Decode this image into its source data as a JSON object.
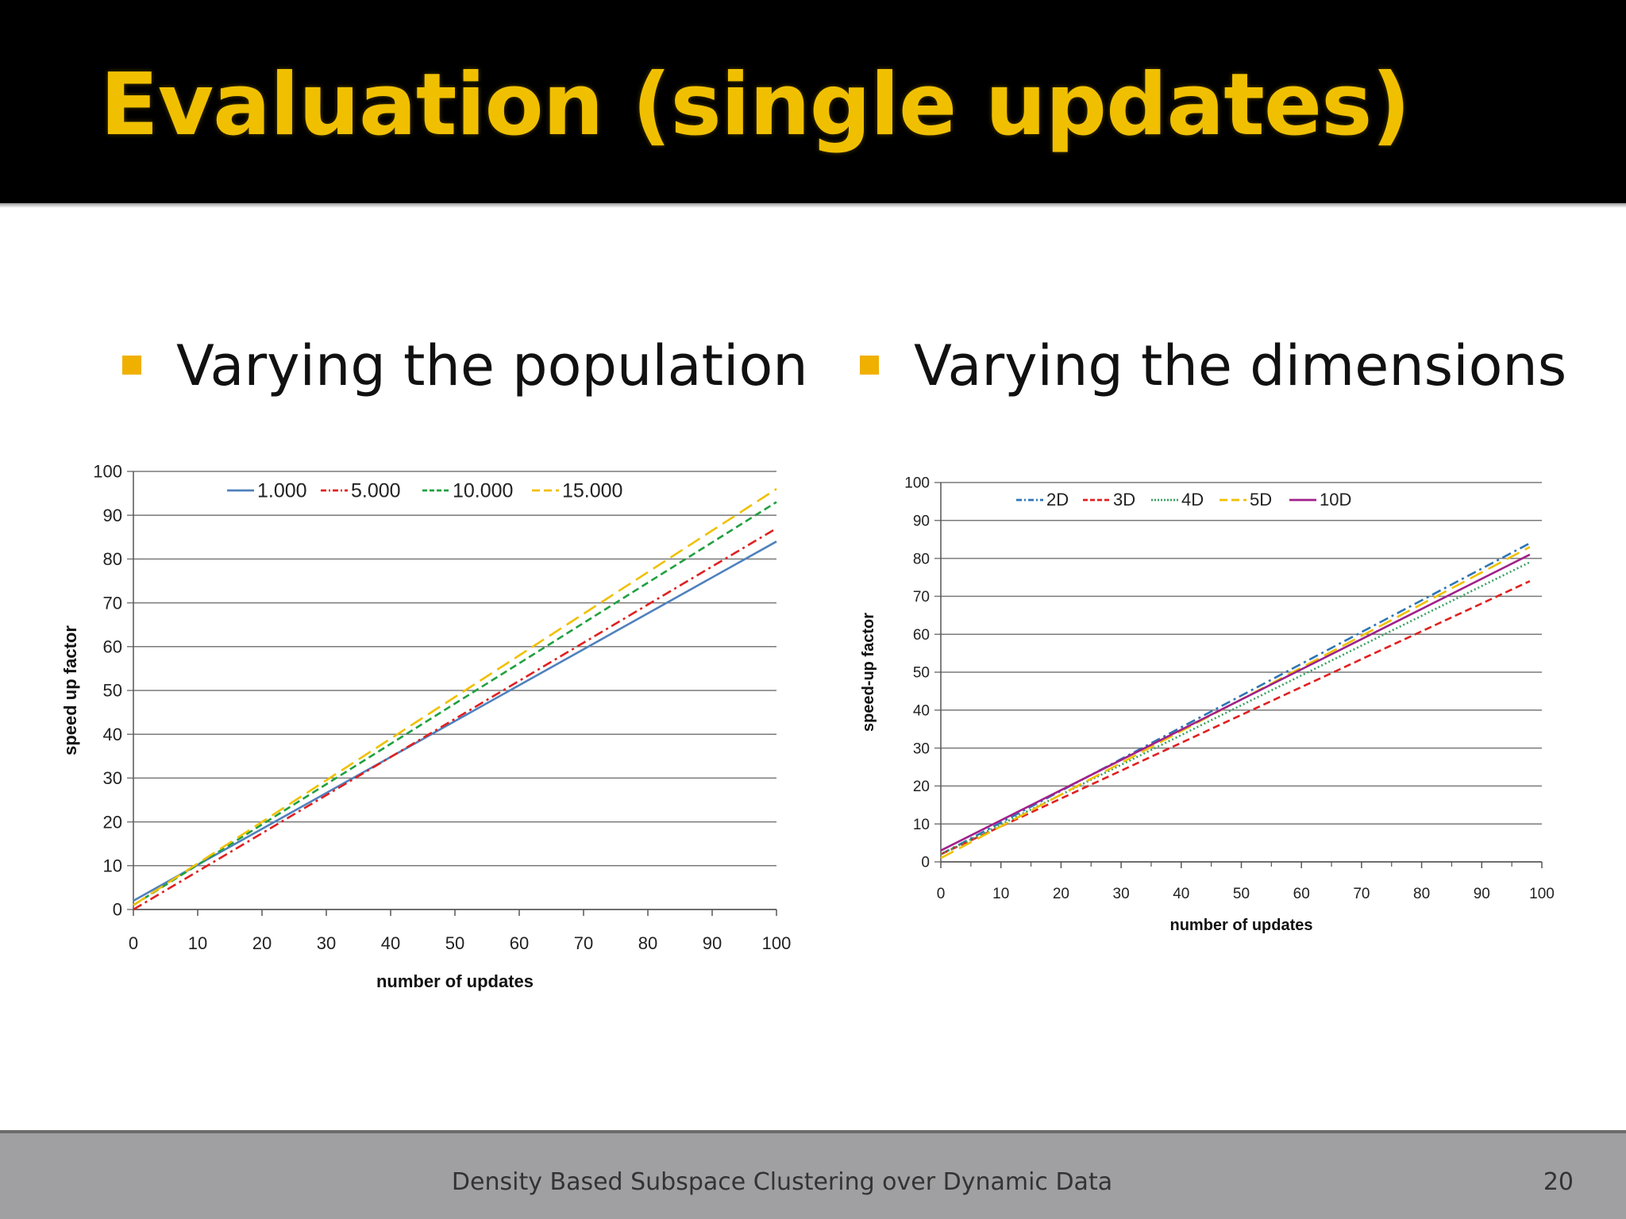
{
  "slide": {
    "title": "Evaluation (single updates)",
    "bullets": [
      {
        "text": "Varying the population"
      },
      {
        "text": "Varying the dimensions"
      }
    ],
    "footer": "Density Based Subspace Clustering over Dynamic Data",
    "page_number": "20",
    "colors": {
      "title": "#f0c000",
      "bullet": "#f0b000",
      "titlebar": "#000000",
      "footer": "#a0a0a2"
    }
  },
  "chart_data": [
    {
      "type": "line",
      "title": "",
      "xlabel": "number of updates",
      "ylabel": "speed up factor",
      "xlim": [
        0,
        100
      ],
      "ylim": [
        0,
        100
      ],
      "xticks": [
        0,
        10,
        20,
        30,
        40,
        50,
        60,
        70,
        80,
        90,
        100
      ],
      "yticks": [
        0,
        10,
        20,
        30,
        40,
        50,
        60,
        70,
        80,
        90,
        100
      ],
      "grid": "horizontal",
      "legend": "top",
      "series": [
        {
          "name": "1.000",
          "color": "#4f81bd",
          "dash": "solid",
          "x": [
            0,
            100
          ],
          "y": [
            2,
            84
          ]
        },
        {
          "name": "5.000",
          "color": "#e02020",
          "dash": "dashdot",
          "x": [
            0,
            100
          ],
          "y": [
            0,
            87
          ]
        },
        {
          "name": "10.000",
          "color": "#20a040",
          "dash": "dashed",
          "x": [
            0,
            100
          ],
          "y": [
            1,
            93
          ]
        },
        {
          "name": "15.000",
          "color": "#f0c000",
          "dash": "longdash",
          "x": [
            0,
            100
          ],
          "y": [
            1,
            96
          ]
        }
      ]
    },
    {
      "type": "line",
      "title": "",
      "xlabel": "number of updates",
      "ylabel": "speed-up factor",
      "xlim": [
        0,
        100
      ],
      "ylim": [
        0,
        100
      ],
      "xticks": [
        0,
        10,
        20,
        30,
        40,
        50,
        60,
        70,
        80,
        90,
        100
      ],
      "yticks": [
        0,
        10,
        20,
        30,
        40,
        50,
        60,
        70,
        80,
        90,
        100
      ],
      "grid": "horizontal",
      "legend": "top",
      "series": [
        {
          "name": "2D",
          "color": "#2e75b6",
          "dash": "dashdot",
          "x": [
            0,
            98
          ],
          "y": [
            2,
            84
          ]
        },
        {
          "name": "3D",
          "color": "#e02020",
          "dash": "dashed",
          "x": [
            0,
            98
          ],
          "y": [
            2,
            74
          ]
        },
        {
          "name": "4D",
          "color": "#3aa060",
          "dash": "dotted",
          "x": [
            0,
            98
          ],
          "y": [
            2,
            79
          ]
        },
        {
          "name": "5D",
          "color": "#f0c000",
          "dash": "longdash",
          "x": [
            0,
            98
          ],
          "y": [
            1,
            83
          ]
        },
        {
          "name": "10D",
          "color": "#a0208a",
          "dash": "solid",
          "x": [
            0,
            98
          ],
          "y": [
            3,
            81
          ]
        }
      ]
    }
  ]
}
